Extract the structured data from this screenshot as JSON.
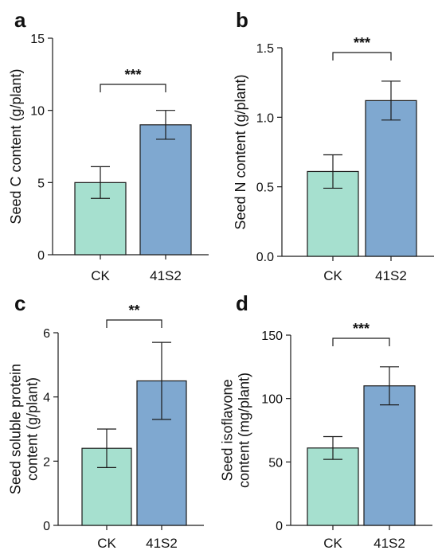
{
  "colors": {
    "ck": "#a6e0cf",
    "s2": "#7fa8d0",
    "stroke": "#1a1a1a"
  },
  "chart_data": [
    {
      "panel": "a",
      "type": "bar",
      "categories": [
        "CK",
        "41S2"
      ],
      "values": [
        5.0,
        9.0
      ],
      "errors": [
        1.1,
        1.0
      ],
      "ylabel_lines": [
        "Seed C content (g/plant)"
      ],
      "ylim": [
        0,
        15
      ],
      "yticks": [
        0,
        5,
        10,
        15
      ],
      "ytick_labels": [
        "0",
        "5",
        "10",
        "15"
      ],
      "significance": "***",
      "grid": false
    },
    {
      "panel": "b",
      "type": "bar",
      "categories": [
        "CK",
        "41S2"
      ],
      "values": [
        0.61,
        1.12
      ],
      "errors": [
        0.12,
        0.14
      ],
      "ylabel_lines": [
        "Seed N content (g/plant)"
      ],
      "ylim": [
        0,
        1.5
      ],
      "yticks": [
        0,
        0.5,
        1.0,
        1.5
      ],
      "ytick_labels": [
        "0.0",
        "0.5",
        "1.0",
        "1.5"
      ],
      "significance": "***",
      "grid": false
    },
    {
      "panel": "c",
      "type": "bar",
      "categories": [
        "CK",
        "41S2"
      ],
      "values": [
        2.4,
        4.5
      ],
      "errors": [
        0.6,
        1.2
      ],
      "ylabel_lines": [
        "Seed soluble protein",
        "content (g/plant)"
      ],
      "ylim": [
        0,
        6
      ],
      "yticks": [
        0,
        2,
        4,
        6
      ],
      "ytick_labels": [
        "0",
        "2",
        "4",
        "6"
      ],
      "significance": "**",
      "grid": false
    },
    {
      "panel": "d",
      "type": "bar",
      "categories": [
        "CK",
        "41S2"
      ],
      "values": [
        61,
        110
      ],
      "errors": [
        9,
        15
      ],
      "ylabel_lines": [
        "Seed isoflavone",
        "content (mg/plant)"
      ],
      "ylim": [
        0,
        150
      ],
      "yticks": [
        0,
        50,
        100,
        150
      ],
      "ytick_labels": [
        "0",
        "50",
        "100",
        "150"
      ],
      "significance": "***",
      "grid": false
    }
  ]
}
